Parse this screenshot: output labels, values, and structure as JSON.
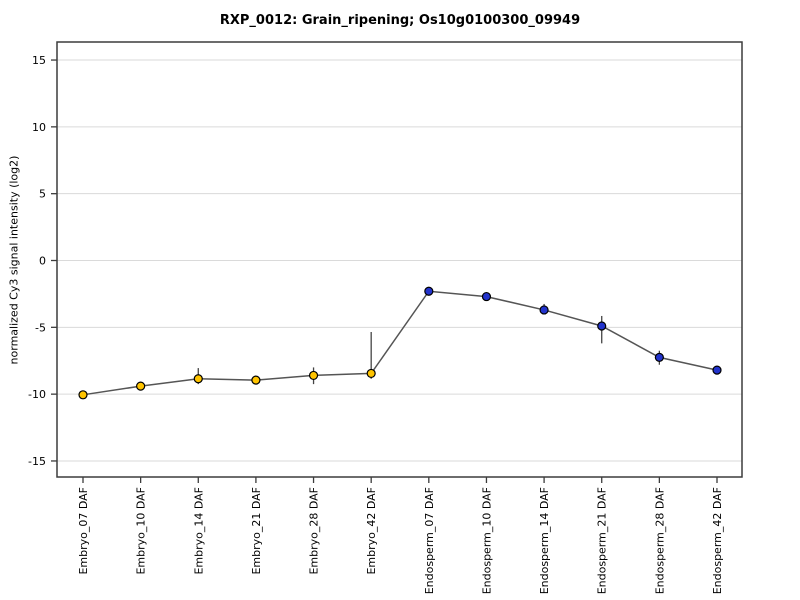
{
  "chart_data": {
    "type": "line",
    "title": "RXP_0012: Grain_ripening; Os10g0100300_09949",
    "ylabel": "normalized Cy3 signal intensity (log2)",
    "xlabel": "",
    "categories": [
      "Embryo_07 DAF",
      "Embryo_10 DAF",
      "Embryo_14 DAF",
      "Embryo_21 DAF",
      "Embryo_28 DAF",
      "Embryo_42 DAF",
      "Endosperm_07 DAF",
      "Endosperm_10 DAF",
      "Endosperm_14 DAF",
      "Endosperm_21 DAF",
      "Endosperm_28 DAF",
      "Endosperm_42 DAF"
    ],
    "values": [
      -10.05,
      -9.4,
      -8.85,
      -8.95,
      -8.6,
      -8.45,
      -2.3,
      -2.7,
      -3.7,
      -4.9,
      -7.25,
      -8.2
    ],
    "error_upper": [
      -9.95,
      -9.15,
      -8.05,
      -8.8,
      -8.0,
      -5.35,
      -2.2,
      -2.4,
      -3.25,
      -4.15,
      -6.75,
      -8.05
    ],
    "error_lower": [
      -10.15,
      -9.7,
      -9.25,
      -9.1,
      -9.25,
      -8.85,
      -2.4,
      -3.0,
      -4.0,
      -6.2,
      -7.8,
      -8.35
    ],
    "point_group": [
      "Embryo",
      "Embryo",
      "Embryo",
      "Embryo",
      "Embryo",
      "Embryo",
      "Endosperm",
      "Endosperm",
      "Endosperm",
      "Endosperm",
      "Endosperm",
      "Endosperm"
    ],
    "group_colors": {
      "Embryo": "#FFC400",
      "Endosperm": "#2233CC"
    },
    "yticks": [
      -15,
      -10,
      -5,
      0,
      5,
      10,
      15
    ],
    "ytick_labels": [
      "-15",
      "-10",
      "-5",
      "0",
      "5",
      "10",
      "15"
    ],
    "ylim": [
      -16.2,
      16.35
    ],
    "grid": true,
    "legend": "none",
    "colors": {
      "line": "#555555",
      "error_bar": "#444444",
      "point_stroke": "#000000",
      "grid": "#DADADA",
      "frame": "#3C3C3C",
      "tick": "#3C3C3C",
      "text": "#000000",
      "background": "#FFFFFF"
    }
  }
}
